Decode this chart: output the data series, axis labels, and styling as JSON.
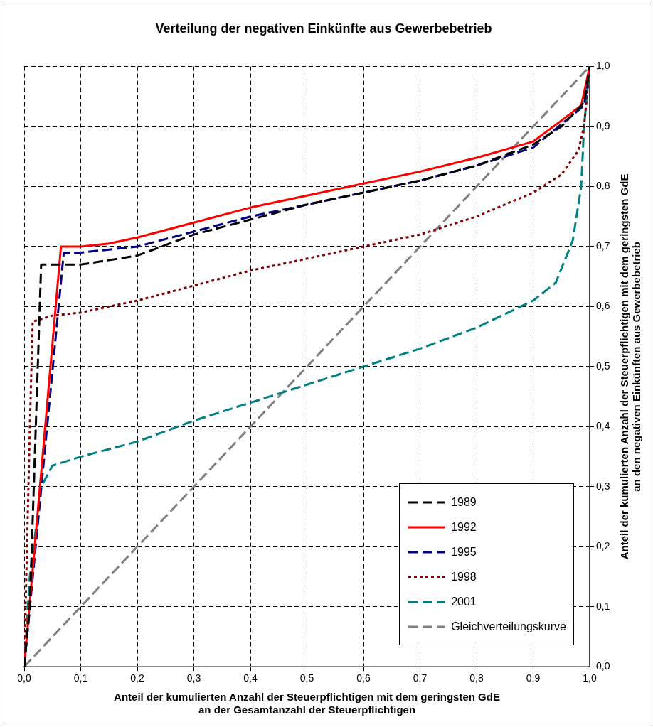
{
  "chart_data": {
    "type": "line",
    "title": "Verteilung der negativen Einkünfte aus Gewerbebetrieb",
    "xlabel": "Anteil der kumulierten Anzahl der Steuerpflichtigen mit dem geringsten GdE\nan der Gesamtanzahl der Steuerpflichtigen",
    "ylabel": "Anteil der kumulierten Anzahl der Steuerpflichtigen mit dem geringsten GdE\nan den negativen Einkünften aus Gewerbebetrieb",
    "xlim": [
      0,
      1
    ],
    "ylim": [
      0,
      1
    ],
    "xticks": [
      {
        "value": 0,
        "label": "0,0"
      },
      {
        "value": 0.1,
        "label": "0,1"
      },
      {
        "value": 0.2,
        "label": "0,2"
      },
      {
        "value": 0.3,
        "label": "0,3"
      },
      {
        "value": 0.4,
        "label": "0,4"
      },
      {
        "value": 0.5,
        "label": "0,5"
      },
      {
        "value": 0.6,
        "label": "0,6"
      },
      {
        "value": 0.7,
        "label": "0,7"
      },
      {
        "value": 0.8,
        "label": "0,8"
      },
      {
        "value": 0.9,
        "label": "0,9"
      },
      {
        "value": 1,
        "label": "1,0"
      }
    ],
    "yticks": [
      {
        "value": 0,
        "label": "0,0"
      },
      {
        "value": 0.1,
        "label": "0,1"
      },
      {
        "value": 0.2,
        "label": "0,2"
      },
      {
        "value": 0.3,
        "label": "0,3"
      },
      {
        "value": 0.4,
        "label": "0,4"
      },
      {
        "value": 0.5,
        "label": "0,5"
      },
      {
        "value": 0.6,
        "label": "0,6"
      },
      {
        "value": 0.7,
        "label": "0,7"
      },
      {
        "value": 0.8,
        "label": "0,8"
      },
      {
        "value": 0.9,
        "label": "0,9"
      },
      {
        "value": 1,
        "label": "1,0"
      }
    ],
    "grid": true,
    "legend": "bottom right",
    "marker": "none",
    "series": [
      {
        "name": "1989",
        "color": "#000000",
        "line_style": "dashed",
        "x": [
          0,
          0.01,
          0.03,
          0.1,
          0.2,
          0.3,
          0.4,
          0.5,
          0.6,
          0.7,
          0.8,
          0.9,
          0.95,
          0.99,
          1
        ],
        "values": [
          0,
          0.1,
          0.67,
          0.67,
          0.685,
          0.72,
          0.745,
          0.77,
          0.79,
          0.81,
          0.835,
          0.87,
          0.9,
          0.94,
          1
        ]
      },
      {
        "name": "1992",
        "color": "#ff0000",
        "line_style": "solid",
        "x": [
          0,
          0.065,
          0.1,
          0.15,
          0.2,
          0.3,
          0.4,
          0.5,
          0.6,
          0.7,
          0.8,
          0.9,
          0.95,
          0.985,
          1
        ],
        "values": [
          0,
          0.7,
          0.7,
          0.705,
          0.715,
          0.74,
          0.765,
          0.785,
          0.805,
          0.825,
          0.848,
          0.875,
          0.91,
          0.935,
          1
        ]
      },
      {
        "name": "1995",
        "color": "#000080",
        "line_style": "dashed",
        "x": [
          0,
          0.07,
          0.1,
          0.2,
          0.3,
          0.4,
          0.5,
          0.6,
          0.7,
          0.8,
          0.9,
          0.99,
          1
        ],
        "values": [
          0,
          0.69,
          0.69,
          0.7,
          0.725,
          0.75,
          0.77,
          0.79,
          0.81,
          0.835,
          0.865,
          0.935,
          1
        ]
      },
      {
        "name": "1998",
        "color": "#800000",
        "line_style": "dotted",
        "x": [
          0,
          0.005,
          0.01,
          0.015,
          0.05,
          0.1,
          0.2,
          0.3,
          0.4,
          0.5,
          0.6,
          0.7,
          0.8,
          0.9,
          0.95,
          0.98,
          0.99,
          1
        ],
        "values": [
          0,
          0.2,
          0.4,
          0.575,
          0.585,
          0.59,
          0.61,
          0.635,
          0.66,
          0.68,
          0.7,
          0.72,
          0.75,
          0.79,
          0.82,
          0.86,
          0.9,
          1
        ]
      },
      {
        "name": "2001",
        "color": "#008080",
        "line_style": "dashed",
        "x": [
          0,
          0.01,
          0.03,
          0.05,
          0.1,
          0.2,
          0.3,
          0.4,
          0.5,
          0.6,
          0.7,
          0.8,
          0.9,
          0.94,
          0.97,
          0.985,
          0.99,
          1
        ],
        "values": [
          0,
          0.15,
          0.3,
          0.335,
          0.35,
          0.375,
          0.41,
          0.44,
          0.47,
          0.5,
          0.53,
          0.565,
          0.61,
          0.64,
          0.71,
          0.8,
          0.9,
          1
        ]
      },
      {
        "name": "Gleichverteilungskurve",
        "color": "#808080",
        "line_style": "dashed",
        "x": [
          0,
          1
        ],
        "values": [
          0,
          1
        ]
      }
    ]
  }
}
